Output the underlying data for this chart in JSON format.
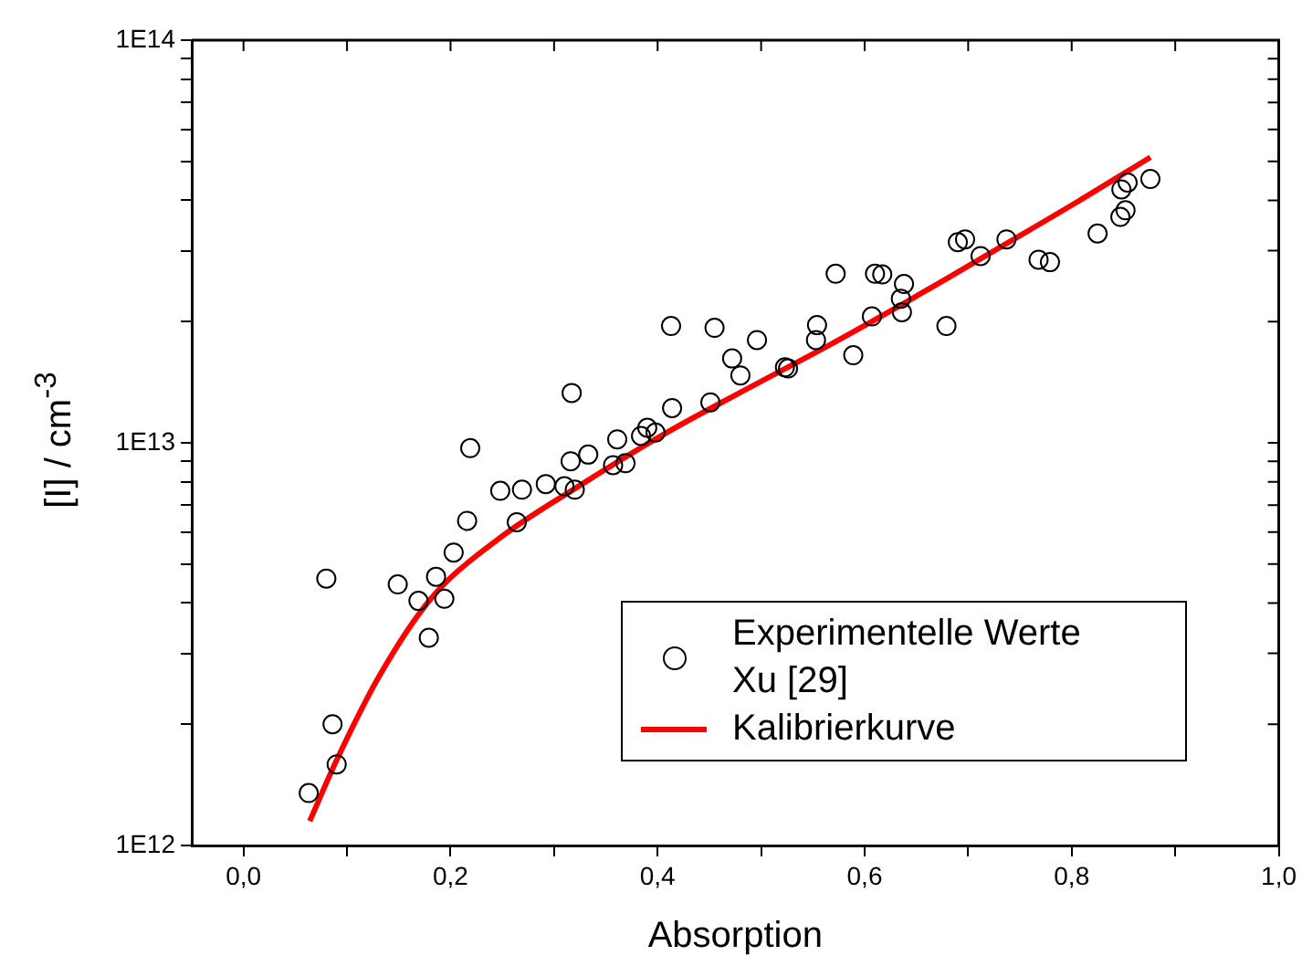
{
  "chart_data": {
    "type": "scatter",
    "xlabel": "Absorption",
    "ylabel": "[I] / cm$^{-3}$",
    "log": "y",
    "xlim": [
      -0.05,
      1.0
    ],
    "ylim": [
      1000000000000.0,
      100000000000000.0
    ],
    "xticks": [
      {
        "value": 0,
        "label": "0,0"
      },
      {
        "value": 0.1,
        "label": null
      },
      {
        "value": 0.2,
        "label": "0,2"
      },
      {
        "value": 0.3,
        "label": null
      },
      {
        "value": 0.4,
        "label": "0,4"
      },
      {
        "value": 0.5,
        "label": null
      },
      {
        "value": 0.6,
        "label": "0,6"
      },
      {
        "value": 0.7,
        "label": null
      },
      {
        "value": 0.8,
        "label": "0,8"
      },
      {
        "value": 0.9,
        "label": null
      },
      {
        "value": 1.0,
        "label": "1,0"
      }
    ],
    "yticks": [
      {
        "value": 1000000000000.0,
        "label": "1E12"
      },
      {
        "value": 2000000000000.0,
        "label": null
      },
      {
        "value": 3000000000000.0,
        "label": null
      },
      {
        "value": 4000000000000.0,
        "label": null
      },
      {
        "value": 5000000000000.0,
        "label": null
      },
      {
        "value": 6000000000000.0,
        "label": null
      },
      {
        "value": 7000000000000.0,
        "label": null
      },
      {
        "value": 8000000000000.0,
        "label": null
      },
      {
        "value": 9000000000000.0,
        "label": null
      },
      {
        "value": 10000000000000.0,
        "label": "1E13"
      },
      {
        "value": 20000000000000.0,
        "label": null
      },
      {
        "value": 30000000000000.0,
        "label": null
      },
      {
        "value": 40000000000000.0,
        "label": null
      },
      {
        "value": 50000000000000.0,
        "label": null
      },
      {
        "value": 60000000000000.0,
        "label": null
      },
      {
        "value": 70000000000000.0,
        "label": null
      },
      {
        "value": 80000000000000.0,
        "label": null
      },
      {
        "value": 90000000000000.0,
        "label": null
      },
      {
        "value": 100000000000000.0,
        "label": "1E14"
      }
    ],
    "grid": false,
    "legend": "bottom right",
    "series": [
      {
        "name": "Experimentelle Werte Xu [29]",
        "type": "scatter",
        "marker": "circle",
        "color": "#000000",
        "x": [
          0.063,
          0.08,
          0.086,
          0.09,
          0.149,
          0.169,
          0.179,
          0.186,
          0.194,
          0.203,
          0.216,
          0.219,
          0.248,
          0.264,
          0.269,
          0.292,
          0.31,
          0.316,
          0.317,
          0.32,
          0.333,
          0.357,
          0.361,
          0.369,
          0.384,
          0.39,
          0.398,
          0.413,
          0.414,
          0.451,
          0.455,
          0.472,
          0.48,
          0.496,
          0.523,
          0.526,
          0.553,
          0.554,
          0.572,
          0.589,
          0.607,
          0.61,
          0.617,
          0.635,
          0.636,
          0.638,
          0.679,
          0.69,
          0.697,
          0.712,
          0.737,
          0.768,
          0.779,
          0.825,
          0.847,
          0.852,
          0.848,
          0.854,
          0.876
        ],
        "values": [
          1350000000000.0,
          4600000000000.0,
          2000000000000.0,
          1590000000000.0,
          4450000000000.0,
          4050000000000.0,
          3280000000000.0,
          4650000000000.0,
          4100000000000.0,
          5340000000000.0,
          6400000000000.0,
          9700000000000.0,
          7600000000000.0,
          6350000000000.0,
          7650000000000.0,
          7900000000000.0,
          7800000000000.0,
          9000000000000.0,
          13300000000000.0,
          7650000000000.0,
          9350000000000.0,
          8800000000000.0,
          10200000000000.0,
          8900000000000.0,
          10400000000000.0,
          10900000000000.0,
          10600000000000.0,
          19500000000000.0,
          12200000000000.0,
          12600000000000.0,
          19300000000000.0,
          16200000000000.0,
          14700000000000.0,
          18000000000000.0,
          15400000000000.0,
          15300000000000.0,
          18000000000000.0,
          19600000000000.0,
          26300000000000.0,
          16500000000000.0,
          20600000000000.0,
          26300000000000.0,
          26200000000000.0,
          22800000000000.0,
          21100000000000.0,
          24800000000000.0,
          19500000000000.0,
          31500000000000.0,
          32000000000000.0,
          29100000000000.0,
          32000000000000.0,
          28500000000000.0,
          28100000000000.0,
          33100000000000.0,
          36400000000000.0,
          37800000000000.0,
          42600000000000.0,
          44300000000000.0,
          45200000000000.0
        ]
      },
      {
        "name": "Kalibrierkurve",
        "type": "line",
        "marker": "none",
        "line_style": "solid",
        "color": "#ff0000",
        "x": [
          0.064,
          0.091,
          0.131,
          0.181,
          0.245,
          0.325,
          0.406,
          0.486,
          0.566,
          0.647,
          0.727,
          0.807,
          0.876
        ],
        "values": [
          1150000000000.0,
          1650000000000.0,
          2630000000000.0,
          4100000000000.0,
          5740000000000.0,
          7840000000000.0,
          10500000000000.0,
          13600000000000.0,
          17500000000000.0,
          22900000000000.0,
          30200000000000.0,
          39900000000000.0,
          51200000000000.0
        ]
      }
    ]
  }
}
